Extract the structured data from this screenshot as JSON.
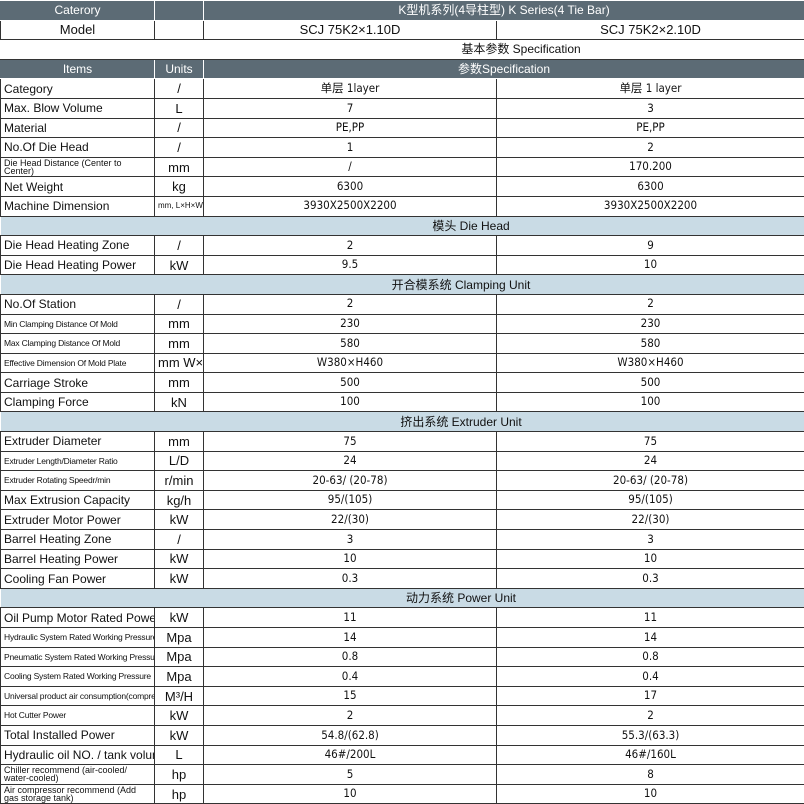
{
  "header": {
    "category_label": "Caterory",
    "series_title": "K型机系列(4导柱型)   K Series(4 Tie Bar)"
  },
  "model_row": {
    "label": "Model",
    "models": [
      "SCJ 75K2×1.10D",
      "SCJ 75K2×2.10D"
    ]
  },
  "spec_banner": "基本参数   Specification",
  "columns_header": {
    "items": "Items",
    "units": "Units",
    "spec": "参数Specification"
  },
  "colors": {
    "header_bg": "#5c6b75",
    "section_bg": "#c9dbe5"
  },
  "sections": [
    {
      "title": "",
      "rows": [
        {
          "item": "Category",
          "unit": "/",
          "values": [
            "单层 1layer",
            "单层 1 layer"
          ]
        },
        {
          "item": "Max. Blow Volume",
          "unit": "L",
          "values": [
            "7",
            "3"
          ]
        },
        {
          "item": "Material",
          "unit": "/",
          "values": [
            "PE,PP",
            "PE,PP"
          ]
        },
        {
          "item": "No.Of Die Head",
          "unit": "/",
          "values": [
            "1",
            "2"
          ]
        },
        {
          "item": "Die Head Distance (Center to Center)",
          "unit": "mm",
          "values": [
            "/",
            "170.200"
          ]
        },
        {
          "item": "Net Weight",
          "unit": "kg",
          "values": [
            "6300",
            "6300"
          ]
        },
        {
          "item": "Machine Dimension",
          "unit": "mm, L×H×W",
          "values": [
            "3930X2500X2200",
            "3930X2500X2200"
          ]
        }
      ]
    },
    {
      "title": "模头    Die Head",
      "rows": [
        {
          "item": "Die Head Heating Zone",
          "unit": "/",
          "values": [
            "2",
            "9"
          ]
        },
        {
          "item": "Die Head Heating Power",
          "unit": "kW",
          "values": [
            "9.5",
            "10"
          ]
        }
      ]
    },
    {
      "title": "开合模系统    Clamping Unit",
      "rows": [
        {
          "item": "No.Of Station",
          "unit": "/",
          "values": [
            "2",
            "2"
          ]
        },
        {
          "item": "Min Clamping Distance Of Mold",
          "unit": "mm",
          "values": [
            "230",
            "230"
          ]
        },
        {
          "item": "Max Clamping Distance Of Mold",
          "unit": "mm",
          "values": [
            "580",
            "580"
          ]
        },
        {
          "item": "Effective Dimension Of Mold Plate",
          "unit": "mm W×H",
          "values": [
            "W380×H460",
            "W380×H460"
          ]
        },
        {
          "item": "Carriage  Stroke",
          "unit": "mm",
          "values": [
            "500",
            "500"
          ]
        },
        {
          "item": "Clamping Force",
          "unit": "kN",
          "values": [
            "100",
            "100"
          ]
        }
      ]
    },
    {
      "title": "挤出系统    Extruder Unit",
      "rows": [
        {
          "item": "Extruder Diameter",
          "unit": "mm",
          "values": [
            "75",
            "75"
          ]
        },
        {
          "item": "Extruder Length/Diameter Ratio",
          "unit": "L/D",
          "values": [
            "24",
            "24"
          ]
        },
        {
          "item": "Extruder Rotating Speedr/min",
          "unit": "r/min",
          "values": [
            "20-63/  (20-78)",
            "20-63/  (20-78)"
          ]
        },
        {
          "item": "Max Extrusion Capacity",
          "unit": "kg/h",
          "values": [
            "95/(105)",
            "95/(105)"
          ]
        },
        {
          "item": "Extruder Motor Power",
          "unit": "kW",
          "values": [
            "22/(30)",
            "22/(30)"
          ]
        },
        {
          "item": "Barrel Heating Zone",
          "unit": "/",
          "values": [
            "3",
            "3"
          ]
        },
        {
          "item": "Barrel Heating Power",
          "unit": "kW",
          "values": [
            "10",
            "10"
          ]
        },
        {
          "item": "Cooling Fan Power",
          "unit": "kW",
          "values": [
            "0.3",
            "0.3"
          ]
        }
      ]
    },
    {
      "title": "动力系统    Power Unit",
      "rows": [
        {
          "item": "Oil Pump Motor Rated Power",
          "unit": "kW",
          "values": [
            "11",
            "11"
          ]
        },
        {
          "item": "Hydraulic System Rated Working Pressure",
          "unit": "Mpa",
          "values": [
            "14",
            "14"
          ]
        },
        {
          "item": "Pneumatic System Rated Working Pressure",
          "unit": "Mpa",
          "values": [
            "0.8",
            "0.8"
          ]
        },
        {
          "item": "Cooling System Rated Working  Pressure",
          "unit": "Mpa",
          "values": [
            "0.4",
            "0.4"
          ]
        },
        {
          "item": "Universal product air consumption(compressed)",
          "unit": "M³/H",
          "values": [
            "15",
            "17"
          ]
        },
        {
          "item": "Hot Cutter Power",
          "unit": "kW",
          "values": [
            "2",
            "2"
          ]
        },
        {
          "item": "Total Installed Power",
          "unit": "kW",
          "values": [
            "54.8/(62.8)",
            "55.3/(63.3)"
          ]
        },
        {
          "item": "Hydraulic oil NO. / tank volume",
          "unit": "L",
          "values": [
            "46#/200L",
            "46#/160L"
          ]
        },
        {
          "item": "Chiller recommend (air-cooled/ water-cooled)",
          "unit": "hp",
          "values": [
            "5",
            "8"
          ]
        },
        {
          "item": "Air compressor recommend (Add gas storage tank)",
          "unit": "hp",
          "values": [
            "10",
            "10"
          ]
        }
      ]
    }
  ]
}
